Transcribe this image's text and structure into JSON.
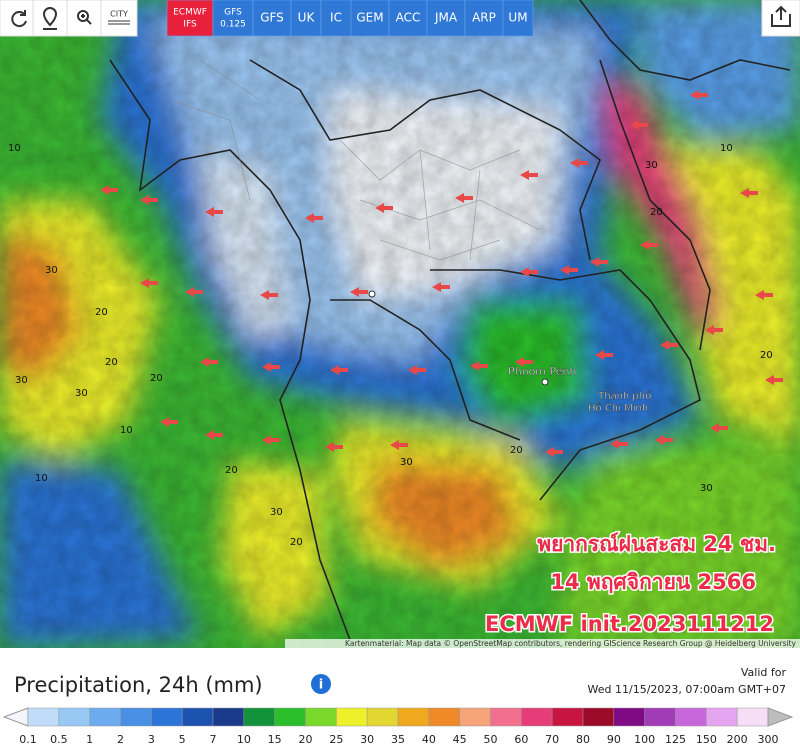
{
  "toolbar": {
    "city_label": "CITY"
  },
  "models": [
    {
      "label": "ECMWF",
      "sub": "IFS",
      "active": true
    },
    {
      "label": "GFS",
      "sub": "0.125",
      "active": false
    },
    {
      "label": "GFS",
      "active": false
    },
    {
      "label": "UK",
      "active": false
    },
    {
      "label": "IC",
      "active": false
    },
    {
      "label": "GEM",
      "active": false
    },
    {
      "label": "ACC",
      "active": false
    },
    {
      "label": "JMA",
      "active": false
    },
    {
      "label": "ARP",
      "active": false
    },
    {
      "label": "UM",
      "active": false
    }
  ],
  "map": {
    "places": [
      "Phnom Penh",
      "Thành phố",
      "Hồ Chí Minh"
    ],
    "overlay": [
      "พยากรณ์ฝนสะสม 24 ชม.",
      "14 พฤศจิกายน 2566",
      "ECMWF init.2023111212"
    ],
    "contour_labels": [
      "10",
      "30",
      "20",
      "20",
      "30",
      "30",
      "20",
      "10",
      "10",
      "20",
      "30",
      "30",
      "20",
      "20",
      "30",
      "20",
      "10",
      "20",
      "30",
      "20"
    ],
    "attribution": "Kartenmaterial: Map data © OpenStreetMap contributors, rendering GIScience Research Group @ Heidelberg University"
  },
  "panel": {
    "title": "Precipitation, 24h (mm)",
    "valid_label": "Valid for",
    "valid_time": "Wed 11/15/2023, 07:00am GMT+07"
  },
  "legend": {
    "labels": [
      "0.1",
      "0.5",
      "1",
      "2",
      "3",
      "5",
      "7",
      "10",
      "15",
      "20",
      "25",
      "30",
      "35",
      "40",
      "45",
      "50",
      "60",
      "70",
      "80",
      "90",
      "100",
      "125",
      "150",
      "200",
      "300"
    ],
    "colors": [
      "#c0dcf8",
      "#98c8f4",
      "#6cacee",
      "#4890e4",
      "#2c74d8",
      "#1c52b0",
      "#1a3a8a",
      "#12923a",
      "#2cbf2c",
      "#7ad82a",
      "#eef02a",
      "#e2d632",
      "#f0a81e",
      "#f08a28",
      "#f4a478",
      "#f2708e",
      "#e63c78",
      "#c81440",
      "#9c0a2a",
      "#7e0a84",
      "#a23cb6",
      "#c866dc",
      "#e4a4f0",
      "#f6def6"
    ]
  }
}
